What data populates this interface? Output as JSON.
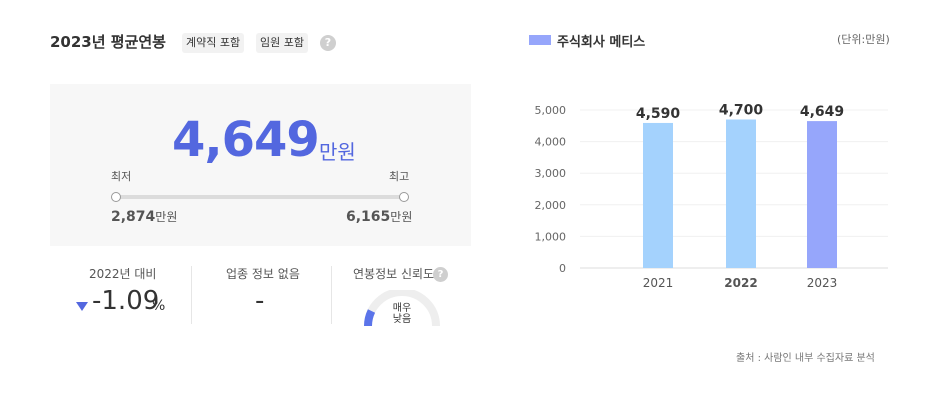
{
  "header": {
    "title": "2023년 평균연봉",
    "tags": [
      "계약직 포함",
      "임원 포함"
    ],
    "help_glyph": "?"
  },
  "salary": {
    "average": "4,649",
    "average_unit": "만원",
    "min_label": "최저",
    "max_label": "최고",
    "min_value": "2,874",
    "max_value": "6,165",
    "unit": "만원"
  },
  "stats": {
    "yoy_label": "2022년 대비",
    "yoy_value": "-1.09",
    "yoy_unit": "%",
    "yoy_direction": "down",
    "industry_label": "업종 정보 없음",
    "industry_value": "-",
    "reliability_label": "연봉정보 신뢰도",
    "reliability_text_1": "매우",
    "reliability_text_2": "낮음"
  },
  "colors": {
    "accent": "#5367df",
    "bar_past": "#a4d2fd",
    "bar_current": "#96a6fb",
    "gauge_track": "#eeeeee"
  },
  "chart_header": {
    "legend_label": "주식회사 메티스",
    "unit_note": "(단위:만원)"
  },
  "source": "출처 : 사람인 내부 수집자료 분석",
  "chart_data": {
    "type": "bar",
    "categories": [
      "2021",
      "2022",
      "2023"
    ],
    "values": [
      4590,
      4700,
      4649
    ],
    "value_labels": [
      "4,590",
      "4,700",
      "4,649"
    ],
    "yticks": [
      "0",
      "1,000",
      "2,000",
      "3,000",
      "4,000",
      "5,000"
    ],
    "ylim": [
      0,
      5000
    ],
    "legend": [
      "주식회사 메티스"
    ],
    "highlight": "2023",
    "grid": true
  }
}
